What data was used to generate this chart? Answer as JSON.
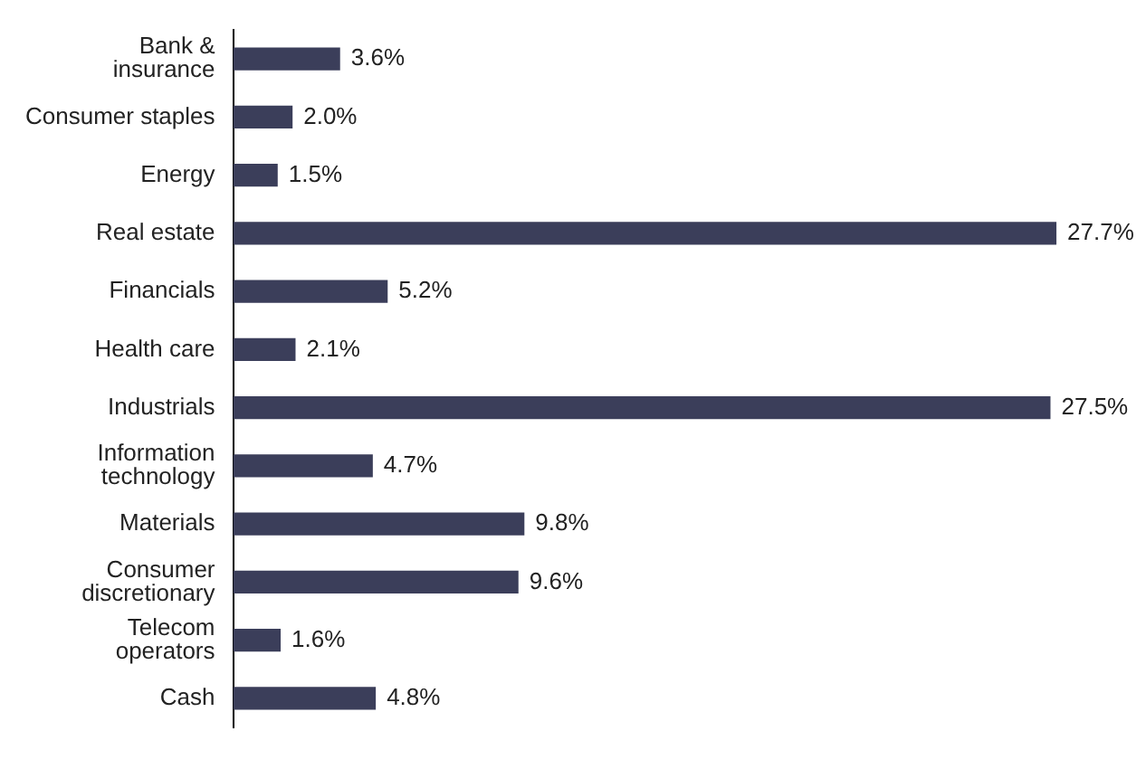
{
  "chart_data": {
    "type": "bar",
    "orientation": "horizontal",
    "categories": [
      "Bank &\ninsurance",
      "Consumer staples",
      "Energy",
      "Real estate",
      "Financials",
      "Health care",
      "Industrials",
      "Information\ntechnology",
      "Materials",
      "Consumer\ndiscretionary",
      "Telecom\noperators",
      "Cash"
    ],
    "values": [
      3.6,
      2.0,
      1.5,
      27.7,
      5.2,
      2.1,
      27.5,
      4.7,
      9.8,
      9.6,
      1.6,
      4.8
    ],
    "value_labels": [
      "3.6%",
      "2.0%",
      "1.5%",
      "27.7%",
      "5.2%",
      "2.1%",
      "27.5%",
      "4.7%",
      "9.8%",
      "9.6%",
      "1.6%",
      "4.8%"
    ],
    "color": "#3b3e5a",
    "legend": false,
    "tick_labels": "y"
  }
}
